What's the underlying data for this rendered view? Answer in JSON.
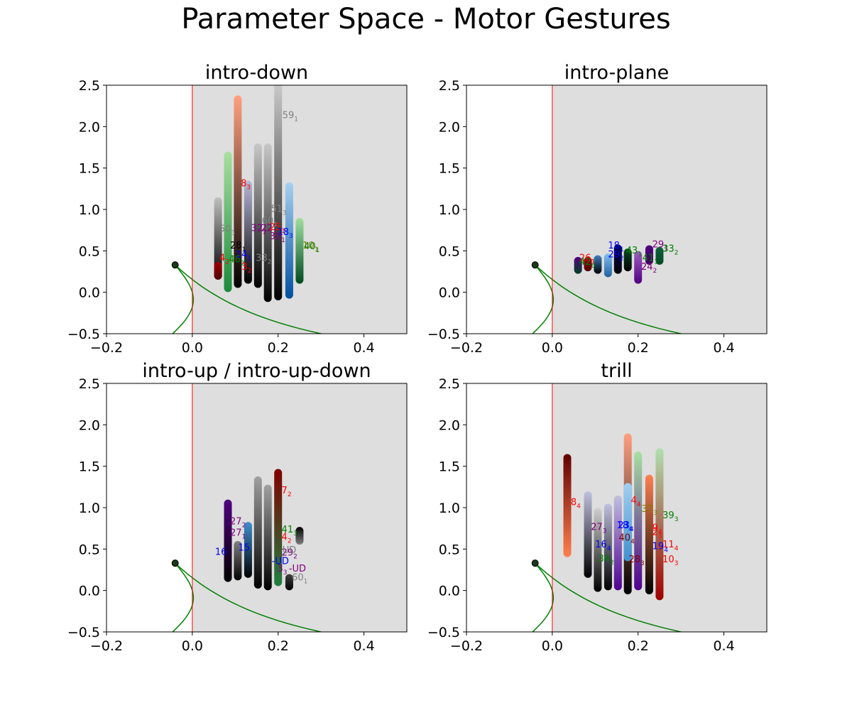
{
  "title": "Parameter Space - Motor Gestures",
  "axes_common": {
    "xlim": [
      -0.2,
      0.5
    ],
    "ylim": [
      -0.5,
      2.5
    ],
    "xticks": [
      -0.2,
      0.0,
      0.2,
      0.4
    ],
    "xtick_labels": [
      "−0.2",
      "0.0",
      "0.2",
      "0.4"
    ],
    "yticks": [
      -0.5,
      0.0,
      0.5,
      1.0,
      1.5,
      2.0,
      2.5
    ],
    "ytick_labels": [
      "−0.5",
      "0.0",
      "0.5",
      "1.0",
      "1.5",
      "2.0",
      "2.5"
    ],
    "shaded_region_color": "#dedede",
    "shaded_region_x_from": 0.0,
    "vertical_line_x": 0.0,
    "vertical_line_color": "#ff0000",
    "curve_color": "#008000",
    "marker_point": [
      -0.04,
      0.33
    ]
  },
  "chart_data": [
    {
      "type": "scatter",
      "title": "intro-down",
      "xlim": [
        -0.2,
        0.5
      ],
      "ylim": [
        -0.5,
        2.5
      ],
      "columns": [
        {
          "x": 0.06,
          "y_min": 0.2,
          "y_max": 1.1,
          "top": "#c0c0c0",
          "bottom": "#000000"
        },
        {
          "x": 0.06,
          "y_min": 0.2,
          "y_max": 0.32,
          "top": "#a00000",
          "bottom": "#500000"
        },
        {
          "x": 0.083,
          "y_min": 0.05,
          "y_max": 1.65,
          "top": "#a8e0a0",
          "bottom": "#1a8a3a"
        },
        {
          "x": 0.106,
          "y_min": 0.1,
          "y_max": 2.33,
          "top": "#ffa080",
          "bottom": "#000000"
        },
        {
          "x": 0.13,
          "y_min": 0.15,
          "y_max": 1.3,
          "top": "#b8b8d8",
          "bottom": "#000000"
        },
        {
          "x": 0.153,
          "y_min": 0.1,
          "y_max": 1.75,
          "top": "#c8c8c8",
          "bottom": "#000000"
        },
        {
          "x": 0.176,
          "y_min": -0.07,
          "y_max": 1.75,
          "top": "#c8c8c8",
          "bottom": "#000000"
        },
        {
          "x": 0.2,
          "y_min": -0.05,
          "y_max": 2.5,
          "top": "#cccccc",
          "bottom": "#000000"
        },
        {
          "x": 0.226,
          "y_min": -0.03,
          "y_max": 1.28,
          "top": "#a8d0f0",
          "bottom": "#0050a0"
        },
        {
          "x": 0.25,
          "y_min": 0.15,
          "y_max": 0.85,
          "top": "#a0e0a0",
          "bottom": "#004a20"
        }
      ],
      "labels": [
        {
          "base": "59",
          "sub": "1",
          "x": 0.21,
          "y": 2.1,
          "color": "#808080"
        },
        {
          "base": "8",
          "sub": "3",
          "x": 0.113,
          "y": 1.28,
          "color": "#ff0000"
        },
        {
          "base": "51",
          "sub": "3",
          "x": 0.183,
          "y": 0.97,
          "color": "#808080"
        },
        {
          "base": "60",
          "sub": "1",
          "x": 0.162,
          "y": 0.83,
          "color": "#808080"
        },
        {
          "base": "50",
          "sub": "3",
          "x": 0.063,
          "y": 0.73,
          "color": "#808080"
        },
        {
          "base": "32",
          "sub": "2",
          "x": 0.137,
          "y": 0.74,
          "color": "#800080"
        },
        {
          "base": "22",
          "sub": "1",
          "x": 0.16,
          "y": 0.74,
          "color": "#800080"
        },
        {
          "base": "25",
          "sub": "1",
          "x": 0.18,
          "y": 0.75,
          "color": "#ff0000"
        },
        {
          "base": "18",
          "sub": "3",
          "x": 0.198,
          "y": 0.69,
          "color": "#0000ff"
        },
        {
          "base": "30",
          "sub": "1",
          "x": 0.18,
          "y": 0.64,
          "color": "#800080"
        },
        {
          "base": "28",
          "sub": "1",
          "x": 0.088,
          "y": 0.53,
          "color": "#000000"
        },
        {
          "base": "10",
          "sub": "1",
          "x": 0.257,
          "y": 0.53,
          "color": "#808000"
        },
        {
          "base": "40",
          "sub": "1",
          "x": 0.26,
          "y": 0.52,
          "color": "#008000"
        },
        {
          "base": "14",
          "sub": "1",
          "x": 0.101,
          "y": 0.42,
          "color": "#0000ff"
        },
        {
          "base": "4",
          "sub": "2",
          "x": 0.063,
          "y": 0.38,
          "color": "#ff0000"
        },
        {
          "base": "46",
          "sub": "2",
          "x": 0.085,
          "y": 0.36,
          "color": "#008000"
        },
        {
          "base": "3",
          "sub": "2",
          "x": 0.115,
          "y": 0.27,
          "color": "#ff0000"
        },
        {
          "base": "33",
          "sub": "2",
          "x": 0.148,
          "y": 0.38,
          "color": "#808080"
        }
      ]
    },
    {
      "type": "scatter",
      "title": "intro-plane",
      "xlim": [
        -0.2,
        0.5
      ],
      "ylim": [
        -0.5,
        2.5
      ],
      "columns": [
        {
          "x": 0.06,
          "y_min": 0.27,
          "y_max": 0.38,
          "top": "#500080",
          "bottom": "#004020"
        },
        {
          "x": 0.083,
          "y_min": 0.3,
          "y_max": 0.38,
          "top": "#a00000",
          "bottom": "#500000"
        },
        {
          "x": 0.106,
          "y_min": 0.27,
          "y_max": 0.4,
          "top": "#4080c0",
          "bottom": "#000000"
        },
        {
          "x": 0.13,
          "y_min": 0.23,
          "y_max": 0.42,
          "top": "#80c0f0",
          "bottom": "#2060a0"
        },
        {
          "x": 0.153,
          "y_min": 0.27,
          "y_max": 0.53,
          "top": "#000060",
          "bottom": "#000000"
        },
        {
          "x": 0.176,
          "y_min": 0.3,
          "y_max": 0.48,
          "top": "#004a20",
          "bottom": "#000000"
        },
        {
          "x": 0.2,
          "y_min": 0.15,
          "y_max": 0.45,
          "top": "#a060c0",
          "bottom": "#500080"
        },
        {
          "x": 0.226,
          "y_min": 0.38,
          "y_max": 0.52,
          "top": "#500080",
          "bottom": "#400060"
        },
        {
          "x": 0.25,
          "y_min": 0.38,
          "y_max": 0.5,
          "top": "#106040",
          "bottom": "#004a20"
        }
      ],
      "labels": [
        {
          "base": "29",
          "sub": "1",
          "x": 0.233,
          "y": 0.54,
          "color": "#800080"
        },
        {
          "base": "18",
          "sub": "1",
          "x": 0.13,
          "y": 0.53,
          "color": "#0000ff"
        },
        {
          "base": "33",
          "sub": "2",
          "x": 0.257,
          "y": 0.49,
          "color": "#008000"
        },
        {
          "base": "26",
          "sub": "1",
          "x": 0.063,
          "y": 0.38,
          "color": "#ff0000"
        },
        {
          "base": "42",
          "sub": "6",
          "x": 0.063,
          "y": 0.33,
          "color": "#008000"
        },
        {
          "base": "24",
          "sub": "2",
          "x": 0.207,
          "y": 0.27,
          "color": "#800080"
        },
        {
          "base": "29",
          "sub": "2",
          "x": 0.13,
          "y": 0.42,
          "color": "#0000ff"
        },
        {
          "base": "41",
          "sub": "1",
          "x": 0.21,
          "y": 0.38,
          "color": "#008000"
        },
        {
          "base": "43",
          "sub": "1",
          "x": 0.172,
          "y": 0.47,
          "color": "#008000"
        }
      ]
    },
    {
      "type": "scatter",
      "title": "intro-up / intro-up-down",
      "xlim": [
        -0.2,
        0.5
      ],
      "ylim": [
        -0.5,
        2.5
      ],
      "columns": [
        {
          "x": 0.083,
          "y_min": 0.15,
          "y_max": 1.05,
          "top": "#500080",
          "bottom": "#000000"
        },
        {
          "x": 0.106,
          "y_min": 0.17,
          "y_max": 0.55,
          "top": "#808080",
          "bottom": "#000000"
        },
        {
          "x": 0.13,
          "y_min": 0.2,
          "y_max": 0.78,
          "top": "#4090d0",
          "bottom": "#000000"
        },
        {
          "x": 0.153,
          "y_min": 0.07,
          "y_max": 1.33,
          "top": "#a0a0a0",
          "bottom": "#000000"
        },
        {
          "x": 0.176,
          "y_min": 0.05,
          "y_max": 1.23,
          "top": "#a0a0a0",
          "bottom": "#000000"
        },
        {
          "x": 0.2,
          "y_min": 0.1,
          "y_max": 1.42,
          "top": "#800000",
          "bottom": "#208040"
        },
        {
          "x": 0.226,
          "y_min": 0.05,
          "y_max": 0.15,
          "top": "#404040",
          "bottom": "#000000"
        },
        {
          "x": 0.25,
          "y_min": 0.6,
          "y_max": 0.72,
          "top": "#000000",
          "bottom": "#808080"
        }
      ],
      "labels": [
        {
          "base": "7",
          "sub": "2",
          "x": 0.208,
          "y": 1.17,
          "color": "#ff0000"
        },
        {
          "base": "27",
          "sub": "2",
          "x": 0.088,
          "y": 0.8,
          "color": "#800080"
        },
        {
          "base": "27",
          "sub": "1",
          "x": 0.088,
          "y": 0.66,
          "color": "#800080"
        },
        {
          "base": "41",
          "sub": "3",
          "x": 0.208,
          "y": 0.7,
          "color": "#008000"
        },
        {
          "base": "4",
          "sub": "2",
          "x": 0.208,
          "y": 0.61,
          "color": "#ff0000"
        },
        {
          "base": "16",
          "sub": "",
          "x": 0.053,
          "y": 0.43,
          "color": "#0000ff"
        },
        {
          "base": "15",
          "sub": "",
          "x": 0.107,
          "y": 0.48,
          "color": "#0000ff"
        },
        {
          "base": "29",
          "sub": "2",
          "x": 0.208,
          "y": 0.42,
          "color": "#800080"
        },
        {
          "base": "-UD",
          "sub": "",
          "x": 0.185,
          "y": 0.32,
          "color": "#0000ff"
        },
        {
          "base": "3",
          "sub": "3",
          "x": 0.198,
          "y": 0.23,
          "color": "#800080"
        },
        {
          "base": "-UD",
          "sub": "",
          "x": 0.225,
          "y": 0.23,
          "color": "#800080"
        },
        {
          "base": "60",
          "sub": "1",
          "x": 0.232,
          "y": 0.12,
          "color": "#808080"
        },
        {
          "base": "UD",
          "sub": "",
          "x": 0.21,
          "y": 0.45,
          "color": "#808080"
        }
      ]
    },
    {
      "type": "scatter",
      "title": "trill",
      "xlim": [
        -0.2,
        0.5
      ],
      "ylim": [
        -0.5,
        2.5
      ],
      "columns": [
        {
          "x": 0.035,
          "y_min": 0.45,
          "y_max": 1.6,
          "top": "#600000",
          "bottom": "#ff8050"
        },
        {
          "x": 0.083,
          "y_min": 0.2,
          "y_max": 1.15,
          "top": "#c0c0e0",
          "bottom": "#000000"
        },
        {
          "x": 0.106,
          "y_min": 0.03,
          "y_max": 0.95,
          "top": "#d0d0d0",
          "bottom": "#000000"
        },
        {
          "x": 0.13,
          "y_min": 0.05,
          "y_max": 1.0,
          "top": "#c0c0e0",
          "bottom": "#000000"
        },
        {
          "x": 0.153,
          "y_min": 0.05,
          "y_max": 1.1,
          "top": "#c0c0e0",
          "bottom": "#500090"
        },
        {
          "x": 0.176,
          "y_min": 0.0,
          "y_max": 1.85,
          "top": "#ffa080",
          "bottom": "#000000"
        },
        {
          "x": 0.176,
          "y_min": 0.4,
          "y_max": 1.25,
          "top": "#a0d0f0",
          "bottom": "#4090d0"
        },
        {
          "x": 0.2,
          "y_min": 0.05,
          "y_max": 1.63,
          "top": "#a8e0a0",
          "bottom": "#500090"
        },
        {
          "x": 0.226,
          "y_min": 0.0,
          "y_max": 1.35,
          "top": "#ff8050",
          "bottom": "#000000"
        },
        {
          "x": 0.25,
          "y_min": -0.07,
          "y_max": 1.67,
          "top": "#b0e0b0",
          "bottom": "#a00000"
        }
      ],
      "labels": [
        {
          "base": "8",
          "sub": "4",
          "x": 0.043,
          "y": 1.03,
          "color": "#ff0000"
        },
        {
          "base": "4",
          "sub": "4",
          "x": 0.183,
          "y": 1.05,
          "color": "#ff0000"
        },
        {
          "base": "37",
          "sub": "3",
          "x": 0.208,
          "y": 0.95,
          "color": "#808000"
        },
        {
          "base": "39",
          "sub": "3",
          "x": 0.257,
          "y": 0.87,
          "color": "#008000"
        },
        {
          "base": "27",
          "sub": "3",
          "x": 0.09,
          "y": 0.73,
          "color": "#800080"
        },
        {
          "base": "18",
          "sub": "4",
          "x": 0.15,
          "y": 0.75,
          "color": "#0000ff"
        },
        {
          "base": "23",
          "sub": "4",
          "x": 0.153,
          "y": 0.75,
          "color": "#0000ff"
        },
        {
          "base": "9",
          "sub": "4",
          "x": 0.233,
          "y": 0.72,
          "color": "#ff0000"
        },
        {
          "base": "2",
          "sub": "3",
          "x": 0.233,
          "y": 0.67,
          "color": "#ff0000"
        },
        {
          "base": "16",
          "sub": "4",
          "x": 0.1,
          "y": 0.52,
          "color": "#0000ff"
        },
        {
          "base": "11",
          "sub": "4",
          "x": 0.257,
          "y": 0.52,
          "color": "#ff0000"
        },
        {
          "base": "19",
          "sub": "4",
          "x": 0.233,
          "y": 0.5,
          "color": "#0000ff"
        },
        {
          "base": "34",
          "sub": "2",
          "x": 0.107,
          "y": 0.35,
          "color": "#008000"
        },
        {
          "base": "10",
          "sub": "3",
          "x": 0.257,
          "y": 0.34,
          "color": "#ff0000"
        },
        {
          "base": "28",
          "sub": "3",
          "x": 0.178,
          "y": 0.34,
          "color": "#800000"
        },
        {
          "base": "40",
          "sub": "4",
          "x": 0.155,
          "y": 0.6,
          "color": "#800000"
        }
      ]
    }
  ]
}
